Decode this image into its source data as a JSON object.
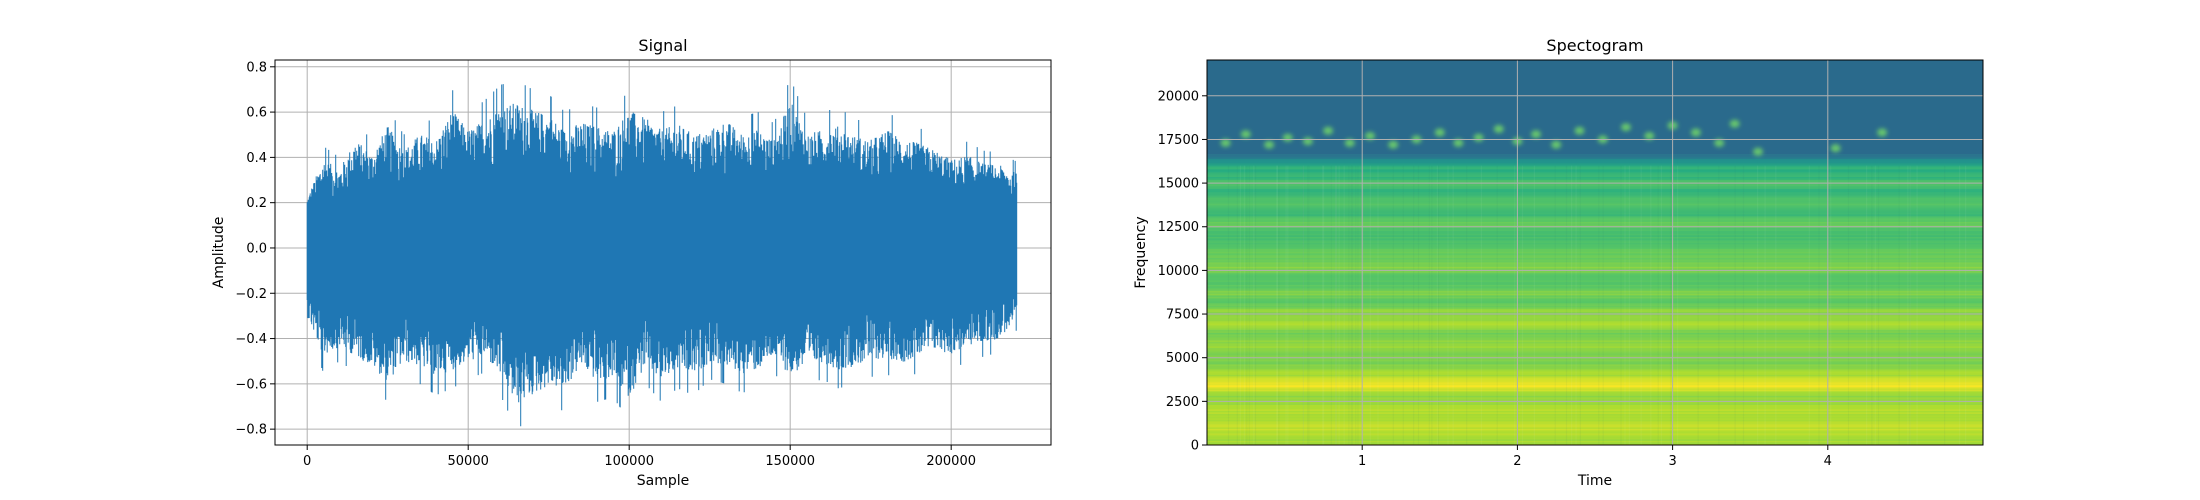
{
  "chart_data": [
    {
      "type": "line",
      "title": "Signal",
      "xlabel": "Sample",
      "ylabel": "Amplitude",
      "xlim": [
        -10000,
        231000
      ],
      "ylim": [
        -0.87,
        0.83
      ],
      "xticks": [
        0,
        50000,
        100000,
        150000,
        200000
      ],
      "xtick_labels": [
        "0",
        "50000",
        "100000",
        "150000",
        "200000"
      ],
      "yticks": [
        -0.8,
        -0.6,
        -0.4,
        -0.2,
        0.0,
        0.2,
        0.4,
        0.6,
        0.8
      ],
      "ytick_labels": [
        "−0.8",
        "−0.6",
        "−0.4",
        "−0.2",
        "0.0",
        "0.2",
        "0.4",
        "0.6",
        "0.8"
      ],
      "grid": true,
      "color": "#1f77b4",
      "series": [
        {
          "x_range": [
            0,
            220500
          ],
          "envelope_x": [
            0,
            5000,
            10000,
            15000,
            20000,
            25000,
            30000,
            35000,
            40000,
            45000,
            50000,
            55000,
            60000,
            65000,
            70000,
            75000,
            80000,
            85000,
            90000,
            95000,
            100000,
            105000,
            110000,
            115000,
            120000,
            125000,
            130000,
            135000,
            140000,
            145000,
            150000,
            155000,
            160000,
            165000,
            170000,
            175000,
            180000,
            185000,
            190000,
            195000,
            200000,
            205000,
            210000,
            215000,
            220500
          ],
          "envelope_upper": [
            0.26,
            0.45,
            0.4,
            0.55,
            0.48,
            0.62,
            0.5,
            0.58,
            0.55,
            0.7,
            0.6,
            0.65,
            0.72,
            0.74,
            0.7,
            0.68,
            0.6,
            0.64,
            0.62,
            0.6,
            0.7,
            0.66,
            0.6,
            0.63,
            0.58,
            0.6,
            0.65,
            0.58,
            0.6,
            0.55,
            0.75,
            0.58,
            0.6,
            0.62,
            0.57,
            0.55,
            0.6,
            0.56,
            0.53,
            0.5,
            0.45,
            0.47,
            0.43,
            0.42,
            0.38
          ],
          "envelope_lower": [
            -0.35,
            -0.55,
            -0.5,
            -0.55,
            -0.6,
            -0.68,
            -0.58,
            -0.6,
            -0.65,
            -0.62,
            -0.58,
            -0.55,
            -0.65,
            -0.8,
            -0.75,
            -0.7,
            -0.72,
            -0.6,
            -0.68,
            -0.66,
            -0.76,
            -0.6,
            -0.68,
            -0.62,
            -0.65,
            -0.58,
            -0.6,
            -0.64,
            -0.62,
            -0.55,
            -0.65,
            -0.6,
            -0.58,
            -0.62,
            -0.6,
            -0.57,
            -0.56,
            -0.58,
            -0.55,
            -0.52,
            -0.54,
            -0.5,
            -0.48,
            -0.46,
            -0.36
          ]
        }
      ]
    },
    {
      "type": "heatmap",
      "title": "Spectogram",
      "xlabel": "Time",
      "ylabel": "Frequency",
      "xlim": [
        0.0,
        5.0
      ],
      "ylim": [
        0,
        22050
      ],
      "xticks": [
        1,
        2,
        3,
        4
      ],
      "xtick_labels": [
        "1",
        "2",
        "3",
        "4"
      ],
      "yticks": [
        0,
        2500,
        5000,
        7500,
        10000,
        12500,
        15000,
        17500,
        20000
      ],
      "ytick_labels": [
        "0",
        "2500",
        "5000",
        "7500",
        "10000",
        "12500",
        "15000",
        "17500",
        "20000"
      ],
      "grid": true,
      "colormap": "viridis",
      "background_color": "#2a6a8c",
      "bands": [
        {
          "frequency": 1000,
          "level": 0.92,
          "width": 600
        },
        {
          "frequency": 2000,
          "level": 0.9,
          "width": 500
        },
        {
          "frequency": 3500,
          "level": 0.98,
          "width": 500
        },
        {
          "frequency": 4000,
          "level": 0.88,
          "width": 350
        },
        {
          "frequency": 5700,
          "level": 0.85,
          "width": 400
        },
        {
          "frequency": 7000,
          "level": 0.88,
          "width": 450
        },
        {
          "frequency": 7600,
          "level": 0.84,
          "width": 350
        },
        {
          "frequency": 8700,
          "level": 0.8,
          "width": 350
        },
        {
          "frequency": 10200,
          "level": 0.82,
          "width": 400
        },
        {
          "frequency": 11000,
          "level": 0.78,
          "width": 350
        },
        {
          "frequency": 12700,
          "level": 0.76,
          "width": 350
        },
        {
          "frequency": 13800,
          "level": 0.74,
          "width": 350
        },
        {
          "frequency": 15000,
          "level": 0.72,
          "width": 300
        }
      ],
      "energy_cutoff_frequency": 16000,
      "burst_band_frequency": 17400,
      "bursts": [
        {
          "time": 0.12,
          "frequency": 17300
        },
        {
          "time": 0.25,
          "frequency": 17800
        },
        {
          "time": 0.4,
          "frequency": 17200
        },
        {
          "time": 0.52,
          "frequency": 17600
        },
        {
          "time": 0.65,
          "frequency": 17400
        },
        {
          "time": 0.78,
          "frequency": 18000
        },
        {
          "time": 0.92,
          "frequency": 17300
        },
        {
          "time": 1.05,
          "frequency": 17700
        },
        {
          "time": 1.2,
          "frequency": 17200
        },
        {
          "time": 1.35,
          "frequency": 17500
        },
        {
          "time": 1.5,
          "frequency": 17900
        },
        {
          "time": 1.62,
          "frequency": 17300
        },
        {
          "time": 1.75,
          "frequency": 17600
        },
        {
          "time": 1.88,
          "frequency": 18100
        },
        {
          "time": 2.0,
          "frequency": 17400
        },
        {
          "time": 2.12,
          "frequency": 17800
        },
        {
          "time": 2.25,
          "frequency": 17200
        },
        {
          "time": 2.4,
          "frequency": 18000
        },
        {
          "time": 2.55,
          "frequency": 17500
        },
        {
          "time": 2.7,
          "frequency": 18200
        },
        {
          "time": 2.85,
          "frequency": 17700
        },
        {
          "time": 3.0,
          "frequency": 18300
        },
        {
          "time": 3.15,
          "frequency": 17900
        },
        {
          "time": 3.3,
          "frequency": 17300
        },
        {
          "time": 3.4,
          "frequency": 18400
        },
        {
          "time": 3.55,
          "frequency": 16800
        },
        {
          "time": 4.05,
          "frequency": 17000
        },
        {
          "time": 4.35,
          "frequency": 17900
        }
      ]
    }
  ]
}
